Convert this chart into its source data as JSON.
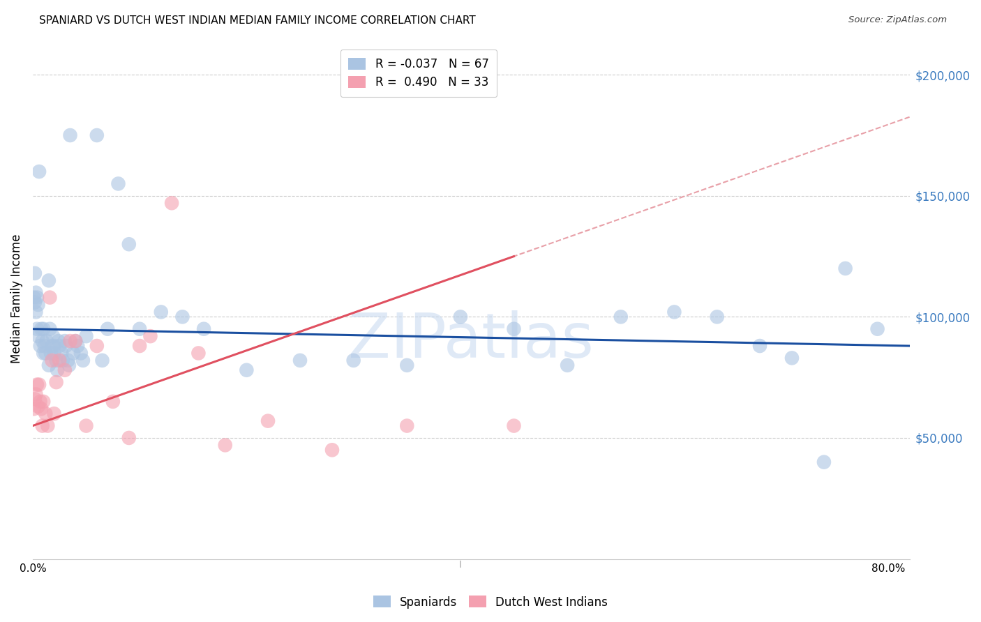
{
  "title": "SPANIARD VS DUTCH WEST INDIAN MEDIAN FAMILY INCOME CORRELATION CHART",
  "source": "Source: ZipAtlas.com",
  "ylabel": "Median Family Income",
  "watermark": "ZIPatlas",
  "right_ytick_labels": [
    "$200,000",
    "$150,000",
    "$100,000",
    "$50,000"
  ],
  "right_ytick_values": [
    200000,
    150000,
    100000,
    50000
  ],
  "legend_r_labels": [
    "R = -0.037   N = 67",
    "R =  0.490   N = 33"
  ],
  "legend_labels": [
    "Spaniards",
    "Dutch West Indians"
  ],
  "spaniards_color": "#aac4e2",
  "dutch_color": "#f4a0b0",
  "regression_blue": "#1a4fa0",
  "regression_pink_solid": "#e05060",
  "regression_pink_dashed": "#e8a0a8",
  "ylim": [
    0,
    215000
  ],
  "xlim": [
    0.0,
    0.82
  ],
  "spaniards": {
    "x": [
      0.001,
      0.002,
      0.002,
      0.003,
      0.003,
      0.004,
      0.004,
      0.005,
      0.005,
      0.006,
      0.007,
      0.008,
      0.009,
      0.01,
      0.01,
      0.011,
      0.012,
      0.013,
      0.015,
      0.015,
      0.016,
      0.017,
      0.018,
      0.019,
      0.02,
      0.02,
      0.022,
      0.023,
      0.024,
      0.025,
      0.027,
      0.028,
      0.03,
      0.031,
      0.033,
      0.034,
      0.035,
      0.038,
      0.04,
      0.042,
      0.045,
      0.047,
      0.05,
      0.06,
      0.065,
      0.07,
      0.08,
      0.09,
      0.1,
      0.12,
      0.14,
      0.16,
      0.2,
      0.25,
      0.3,
      0.35,
      0.4,
      0.45,
      0.5,
      0.55,
      0.6,
      0.64,
      0.68,
      0.71,
      0.74,
      0.76,
      0.79
    ],
    "y": [
      108000,
      118000,
      106000,
      110000,
      102000,
      108000,
      95000,
      105000,
      92000,
      160000,
      88000,
      95000,
      90000,
      95000,
      85000,
      88000,
      85000,
      90000,
      115000,
      80000,
      95000,
      85000,
      88000,
      92000,
      88000,
      85000,
      82000,
      78000,
      90000,
      88000,
      85000,
      82000,
      90000,
      88000,
      82000,
      80000,
      175000,
      85000,
      90000,
      88000,
      85000,
      82000,
      92000,
      175000,
      82000,
      95000,
      155000,
      130000,
      95000,
      102000,
      100000,
      95000,
      78000,
      82000,
      82000,
      80000,
      100000,
      95000,
      80000,
      100000,
      102000,
      100000,
      88000,
      83000,
      40000,
      120000,
      95000
    ]
  },
  "dutch": {
    "x": [
      0.001,
      0.002,
      0.003,
      0.004,
      0.005,
      0.006,
      0.007,
      0.008,
      0.009,
      0.01,
      0.012,
      0.014,
      0.016,
      0.018,
      0.02,
      0.022,
      0.025,
      0.03,
      0.035,
      0.04,
      0.05,
      0.06,
      0.075,
      0.09,
      0.1,
      0.11,
      0.13,
      0.155,
      0.18,
      0.22,
      0.28,
      0.35,
      0.45
    ],
    "y": [
      62000,
      66000,
      68000,
      72000,
      63000,
      72000,
      65000,
      62000,
      55000,
      65000,
      60000,
      55000,
      108000,
      82000,
      60000,
      73000,
      82000,
      78000,
      90000,
      90000,
      55000,
      88000,
      65000,
      50000,
      88000,
      92000,
      147000,
      85000,
      47000,
      57000,
      45000,
      55000,
      55000
    ]
  }
}
